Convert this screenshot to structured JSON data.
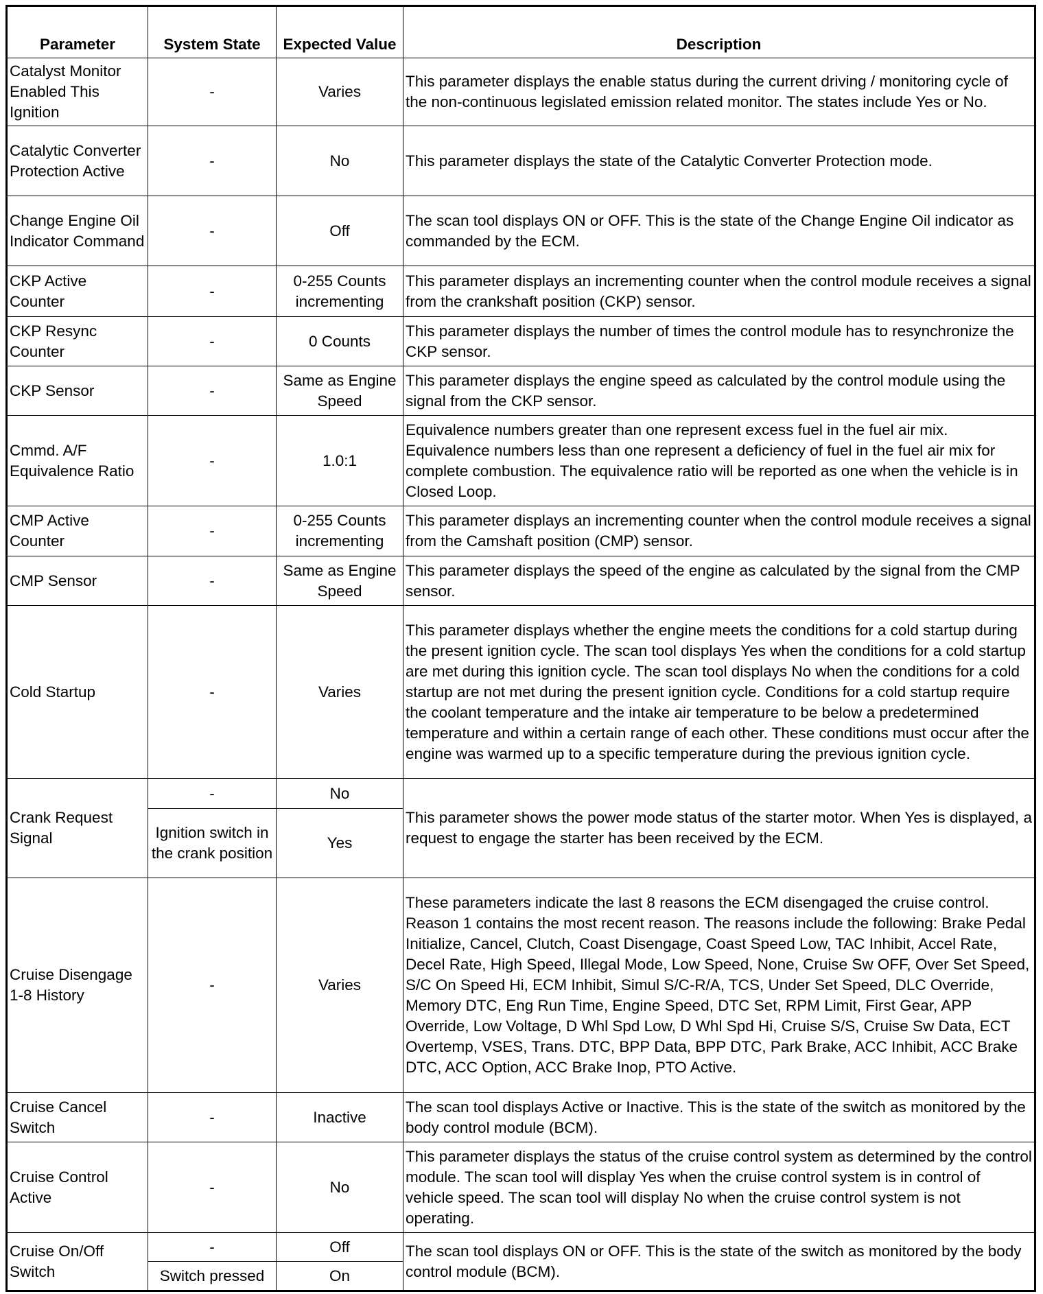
{
  "headers": {
    "parameter": "Parameter",
    "system_state": "System State",
    "expected_value": "Expected Value",
    "description": "Description"
  },
  "rows": [
    {
      "parameter": "Catalyst Monitor Enabled This Ignition",
      "states": [
        {
          "system_state": "-",
          "expected_value": "Varies"
        }
      ],
      "description": "This parameter displays the enable status during the current driving / monitoring cycle of the non-continuous legislated emission related monitor. The states include Yes or No."
    },
    {
      "parameter": "Catalytic Converter Protection Active",
      "states": [
        {
          "system_state": "-",
          "expected_value": "No"
        }
      ],
      "description": "This parameter displays the state of the Catalytic Converter Protection mode."
    },
    {
      "parameter": "Change Engine Oil Indicator Command",
      "states": [
        {
          "system_state": "-",
          "expected_value": "Off"
        }
      ],
      "description": "The scan tool displays ON or OFF. This is the state of the Change Engine Oil indicator as commanded by the ECM."
    },
    {
      "parameter": "CKP Active Counter",
      "states": [
        {
          "system_state": "-",
          "expected_value": "0-255 Counts incrementing"
        }
      ],
      "description": "This parameter displays an incrementing counter when the control module receives a signal from the crankshaft position (CKP) sensor."
    },
    {
      "parameter": "CKP Resync Counter",
      "states": [
        {
          "system_state": "-",
          "expected_value": "0 Counts"
        }
      ],
      "description": "This parameter displays the number of times the control module has to resynchronize the CKP sensor."
    },
    {
      "parameter": "CKP Sensor",
      "states": [
        {
          "system_state": "-",
          "expected_value": "Same as Engine Speed"
        }
      ],
      "description": "This parameter displays the engine speed as calculated by the control module using the signal from the CKP sensor."
    },
    {
      "parameter": "Cmmd. A/F Equivalence Ratio",
      "states": [
        {
          "system_state": "-",
          "expected_value": "1.0:1"
        }
      ],
      "description": "Equivalence numbers greater than one represent excess fuel in the fuel air mix. Equivalence numbers less than one represent a deficiency of fuel in the fuel air mix for complete combustion. The equivalence ratio will be reported as one when the vehicle is in Closed Loop."
    },
    {
      "parameter": "CMP Active Counter",
      "states": [
        {
          "system_state": "-",
          "expected_value": "0-255 Counts incrementing"
        }
      ],
      "description": "This parameter displays an incrementing counter when the control module receives a signal from the Camshaft position (CMP) sensor."
    },
    {
      "parameter": "CMP Sensor",
      "states": [
        {
          "system_state": "-",
          "expected_value": "Same as Engine Speed"
        }
      ],
      "description": "This parameter displays the speed of the engine as calculated by the signal from the CMP sensor."
    },
    {
      "parameter": "Cold Startup",
      "states": [
        {
          "system_state": "-",
          "expected_value": "Varies"
        }
      ],
      "description": "This parameter displays whether the engine meets the conditions for a cold startup during the present ignition cycle. The scan tool displays Yes when the conditions for a cold startup are met during this ignition cycle. The scan tool displays No when the conditions for a cold startup are not met during the present ignition cycle. Conditions for a cold startup require the coolant temperature and the intake air temperature to be below a predetermined temperature and within a certain range of each other. These conditions must occur after the engine was warmed up to a specific temperature during the previous ignition cycle."
    },
    {
      "parameter": "Crank Request Signal",
      "states": [
        {
          "system_state": "-",
          "expected_value": "No"
        },
        {
          "system_state": "Ignition switch in the crank position",
          "expected_value": "Yes"
        }
      ],
      "description": "This parameter shows the power mode status of the starter motor. When Yes is displayed, a request to engage the starter has been received by the ECM."
    },
    {
      "parameter": "Cruise Disengage 1-8 History",
      "states": [
        {
          "system_state": "-",
          "expected_value": "Varies"
        }
      ],
      "description": "These parameters indicate the last 8 reasons the ECM disengaged the cruise control. Reason 1 contains the most recent reason. The reasons include the following: Brake Pedal Initialize, Cancel, Clutch, Coast Disengage, Coast Speed Low, TAC Inhibit, Accel Rate, Decel Rate, High Speed, Illegal Mode, Low Speed, None, Cruise Sw OFF, Over Set Speed, S/C On Speed Hi, ECM Inhibit, Simul S/C-R/A, TCS, Under Set Speed, DLC Override, Memory DTC, Eng Run Time, Engine Speed, DTC Set, RPM Limit, First Gear, APP Override, Low Voltage, D Whl Spd Low, D Whl Spd Hi, Cruise S/S, Cruise Sw Data, ECT Overtemp, VSES, Trans. DTC, BPP Data, BPP DTC, Park Brake, ACC Inhibit, ACC Brake DTC, ACC Option, ACC Brake Inop, PTO Active."
    },
    {
      "parameter": "Cruise Cancel Switch",
      "states": [
        {
          "system_state": "-",
          "expected_value": "Inactive"
        }
      ],
      "description": "The scan tool displays Active or Inactive. This is the state of the switch as monitored by the body control module (BCM)."
    },
    {
      "parameter": "Cruise Control Active",
      "states": [
        {
          "system_state": "-",
          "expected_value": "No"
        }
      ],
      "description": "This parameter displays the status of the cruise control system as determined by the control module. The scan tool will display Yes when the cruise control system is in control of vehicle speed. The scan tool will display No when the cruise control system is not operating."
    },
    {
      "parameter": "Cruise On/Off Switch",
      "states": [
        {
          "system_state": "-",
          "expected_value": "Off"
        },
        {
          "system_state": "Switch pressed",
          "expected_value": "On"
        }
      ],
      "description": "The scan tool displays ON or OFF. This is the state of the switch as monitored by the body control module (BCM)."
    }
  ]
}
